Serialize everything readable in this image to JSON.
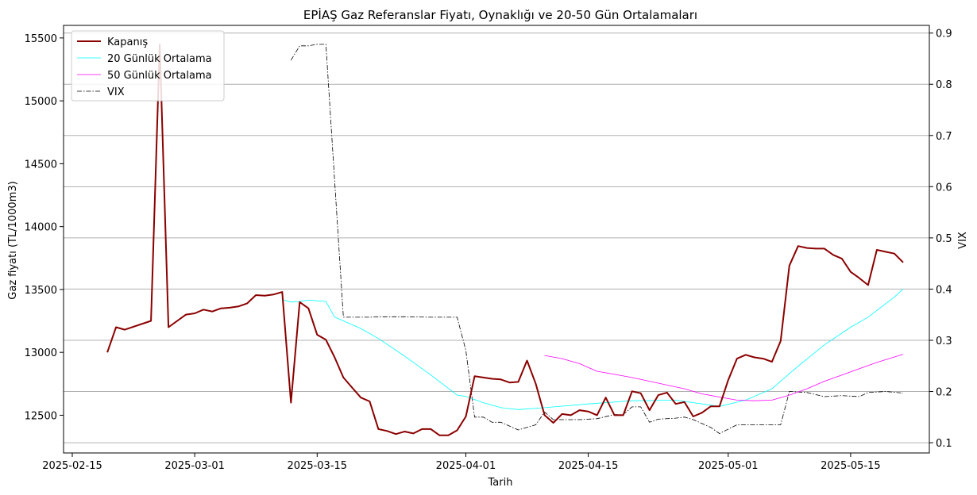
{
  "chart_data": {
    "type": "line",
    "title": "EPİAŞ Gaz Referanslar Fiyatı, Oynaklığı ve 20-50 Gün Ortalamaları",
    "xlabel": "Tarih",
    "ylabel": "Gaz fiyatı (TL/1000m3)",
    "y2label": "VIX",
    "xlim": [
      "2025-02-14",
      "2025-05-24"
    ],
    "ylim": [
      12200,
      15600
    ],
    "y2lim": [
      0.08,
      0.915
    ],
    "x_ticks": [
      "2025-02-15",
      "2025-03-01",
      "2025-03-15",
      "2025-04-01",
      "2025-04-15",
      "2025-05-01",
      "2025-05-15"
    ],
    "y_ticks": [
      12500,
      13000,
      13500,
      14000,
      14500,
      15000,
      15500
    ],
    "y2_ticks": [
      0.1,
      0.2,
      0.3,
      0.4,
      0.5,
      0.6,
      0.7,
      0.8,
      0.9
    ],
    "grid": "y2-horizontal",
    "legend": "top-left",
    "colors": {
      "close": "#8b0000",
      "ma20": "#00ffff",
      "ma50": "#ff00ff",
      "vix": "#000000",
      "grid": "#b0b0b0"
    },
    "series": [
      {
        "name": "Kapanış",
        "axis": "left",
        "style": "solid-thick",
        "points": [
          [
            "2025-02-19",
            13000
          ],
          [
            "2025-02-20",
            13200
          ],
          [
            "2025-02-21",
            13180
          ],
          [
            "2025-02-24",
            13250
          ],
          [
            "2025-02-25",
            15450
          ],
          [
            "2025-02-26",
            13200
          ],
          [
            "2025-02-28",
            13300
          ],
          [
            "2025-03-01",
            13310
          ],
          [
            "2025-03-02",
            13340
          ],
          [
            "2025-03-03",
            13325
          ],
          [
            "2025-03-04",
            13350
          ],
          [
            "2025-03-05",
            13355
          ],
          [
            "2025-03-06",
            13365
          ],
          [
            "2025-03-07",
            13390
          ],
          [
            "2025-03-08",
            13455
          ],
          [
            "2025-03-09",
            13450
          ],
          [
            "2025-03-10",
            13460
          ],
          [
            "2025-03-11",
            13480
          ],
          [
            "2025-03-12",
            12600
          ],
          [
            "2025-03-13",
            13400
          ],
          [
            "2025-03-14",
            13350
          ],
          [
            "2025-03-15",
            13140
          ],
          [
            "2025-03-16",
            13100
          ],
          [
            "2025-03-17",
            12960
          ],
          [
            "2025-03-18",
            12800
          ],
          [
            "2025-03-19",
            12720
          ],
          [
            "2025-03-20",
            12640
          ],
          [
            "2025-03-21",
            12610
          ],
          [
            "2025-03-22",
            12390
          ],
          [
            "2025-03-23",
            12375
          ],
          [
            "2025-03-24",
            12350
          ],
          [
            "2025-03-25",
            12370
          ],
          [
            "2025-03-26",
            12355
          ],
          [
            "2025-03-27",
            12390
          ],
          [
            "2025-03-28",
            12390
          ],
          [
            "2025-03-29",
            12340
          ],
          [
            "2025-03-30",
            12340
          ],
          [
            "2025-03-31",
            12380
          ],
          [
            "2025-04-01",
            12490
          ],
          [
            "2025-04-02",
            12810
          ],
          [
            "2025-04-03",
            12800
          ],
          [
            "2025-04-04",
            12790
          ],
          [
            "2025-04-05",
            12785
          ],
          [
            "2025-04-06",
            12760
          ],
          [
            "2025-04-07",
            12765
          ],
          [
            "2025-04-08",
            12935
          ],
          [
            "2025-04-09",
            12750
          ],
          [
            "2025-04-10",
            12500
          ],
          [
            "2025-04-11",
            12440
          ],
          [
            "2025-04-12",
            12510
          ],
          [
            "2025-04-13",
            12500
          ],
          [
            "2025-04-14",
            12540
          ],
          [
            "2025-04-15",
            12530
          ],
          [
            "2025-04-16",
            12500
          ],
          [
            "2025-04-17",
            12640
          ],
          [
            "2025-04-18",
            12500
          ],
          [
            "2025-04-19",
            12500
          ],
          [
            "2025-04-20",
            12690
          ],
          [
            "2025-04-21",
            12675
          ],
          [
            "2025-04-22",
            12540
          ],
          [
            "2025-04-23",
            12660
          ],
          [
            "2025-04-24",
            12680
          ],
          [
            "2025-04-25",
            12590
          ],
          [
            "2025-04-26",
            12605
          ],
          [
            "2025-04-27",
            12490
          ],
          [
            "2025-04-28",
            12520
          ],
          [
            "2025-04-29",
            12570
          ],
          [
            "2025-04-30",
            12570
          ],
          [
            "2025-05-01",
            12780
          ],
          [
            "2025-05-02",
            12950
          ],
          [
            "2025-05-03",
            12980
          ],
          [
            "2025-05-04",
            12960
          ],
          [
            "2025-05-05",
            12950
          ],
          [
            "2025-05-06",
            12925
          ],
          [
            "2025-05-07",
            13090
          ],
          [
            "2025-05-08",
            13690
          ],
          [
            "2025-05-09",
            13845
          ],
          [
            "2025-05-10",
            13830
          ],
          [
            "2025-05-11",
            13825
          ],
          [
            "2025-05-12",
            13825
          ],
          [
            "2025-05-13",
            13775
          ],
          [
            "2025-05-14",
            13745
          ],
          [
            "2025-05-15",
            13640
          ],
          [
            "2025-05-16",
            13590
          ],
          [
            "2025-05-17",
            13535
          ],
          [
            "2025-05-18",
            13815
          ],
          [
            "2025-05-19",
            13800
          ],
          [
            "2025-05-20",
            13785
          ],
          [
            "2025-05-21",
            13715
          ]
        ]
      },
      {
        "name": "20 Günlük Ortalama",
        "axis": "left",
        "style": "solid-thin",
        "points": [
          [
            "2025-03-11",
            13420
          ],
          [
            "2025-03-12",
            13400
          ],
          [
            "2025-03-13",
            13405
          ],
          [
            "2025-03-14",
            13415
          ],
          [
            "2025-03-15",
            13410
          ],
          [
            "2025-03-16",
            13405
          ],
          [
            "2025-03-17",
            13280
          ],
          [
            "2025-03-18",
            13250
          ],
          [
            "2025-03-20",
            13190
          ],
          [
            "2025-03-22",
            13110
          ],
          [
            "2025-03-25",
            12970
          ],
          [
            "2025-03-28",
            12820
          ],
          [
            "2025-03-31",
            12660
          ],
          [
            "2025-04-01",
            12650
          ],
          [
            "2025-04-03",
            12600
          ],
          [
            "2025-04-05",
            12560
          ],
          [
            "2025-04-07",
            12545
          ],
          [
            "2025-04-10",
            12560
          ],
          [
            "2025-04-15",
            12590
          ],
          [
            "2025-04-20",
            12615
          ],
          [
            "2025-04-25",
            12620
          ],
          [
            "2025-04-28",
            12590
          ],
          [
            "2025-04-30",
            12570
          ],
          [
            "2025-05-03",
            12620
          ],
          [
            "2025-05-06",
            12710
          ],
          [
            "2025-05-09",
            12890
          ],
          [
            "2025-05-12",
            13060
          ],
          [
            "2025-05-15",
            13200
          ],
          [
            "2025-05-17",
            13280
          ],
          [
            "2025-05-20",
            13440
          ],
          [
            "2025-05-21",
            13505
          ]
        ]
      },
      {
        "name": "50 Günlük Ortalama",
        "axis": "left",
        "style": "solid-thin",
        "points": [
          [
            "2025-04-10",
            12975
          ],
          [
            "2025-04-12",
            12950
          ],
          [
            "2025-04-14",
            12910
          ],
          [
            "2025-04-16",
            12850
          ],
          [
            "2025-04-18",
            12825
          ],
          [
            "2025-04-20",
            12800
          ],
          [
            "2025-04-23",
            12755
          ],
          [
            "2025-04-26",
            12710
          ],
          [
            "2025-04-28",
            12670
          ],
          [
            "2025-04-30",
            12645
          ],
          [
            "2025-05-02",
            12620
          ],
          [
            "2025-05-04",
            12615
          ],
          [
            "2025-05-06",
            12620
          ],
          [
            "2025-05-08",
            12660
          ],
          [
            "2025-05-10",
            12710
          ],
          [
            "2025-05-12",
            12770
          ],
          [
            "2025-05-14",
            12820
          ],
          [
            "2025-05-16",
            12870
          ],
          [
            "2025-05-18",
            12920
          ],
          [
            "2025-05-21",
            12985
          ]
        ]
      },
      {
        "name": "VIX",
        "axis": "right",
        "style": "dash-dot",
        "points": [
          [
            "2025-03-12",
            0.847
          ],
          [
            "2025-03-13",
            0.875
          ],
          [
            "2025-03-14",
            0.875
          ],
          [
            "2025-03-15",
            0.878
          ],
          [
            "2025-03-16",
            0.878
          ],
          [
            "2025-03-18",
            0.345
          ],
          [
            "2025-03-21",
            0.345
          ],
          [
            "2025-03-22",
            0.346
          ],
          [
            "2025-03-25",
            0.346
          ],
          [
            "2025-03-28",
            0.345
          ],
          [
            "2025-03-31",
            0.345
          ],
          [
            "2025-04-01",
            0.28
          ],
          [
            "2025-04-02",
            0.15
          ],
          [
            "2025-04-03",
            0.15
          ],
          [
            "2025-04-04",
            0.14
          ],
          [
            "2025-04-05",
            0.14
          ],
          [
            "2025-04-07",
            0.125
          ],
          [
            "2025-04-09",
            0.135
          ],
          [
            "2025-04-10",
            0.16
          ],
          [
            "2025-04-11",
            0.145
          ],
          [
            "2025-04-14",
            0.145
          ],
          [
            "2025-04-16",
            0.147
          ],
          [
            "2025-04-18",
            0.155
          ],
          [
            "2025-04-19",
            0.155
          ],
          [
            "2025-04-20",
            0.17
          ],
          [
            "2025-04-21",
            0.17
          ],
          [
            "2025-04-22",
            0.14
          ],
          [
            "2025-04-23",
            0.146
          ],
          [
            "2025-04-25",
            0.148
          ],
          [
            "2025-04-26",
            0.15
          ],
          [
            "2025-04-27",
            0.145
          ],
          [
            "2025-04-29",
            0.13
          ],
          [
            "2025-04-30",
            0.118
          ],
          [
            "2025-05-02",
            0.135
          ],
          [
            "2025-05-07",
            0.135
          ],
          [
            "2025-05-08",
            0.2
          ],
          [
            "2025-05-10",
            0.198
          ],
          [
            "2025-05-12",
            0.19
          ],
          [
            "2025-05-14",
            0.192
          ],
          [
            "2025-05-16",
            0.19
          ],
          [
            "2025-05-17",
            0.198
          ],
          [
            "2025-05-19",
            0.2
          ],
          [
            "2025-05-21",
            0.197
          ]
        ]
      }
    ]
  }
}
